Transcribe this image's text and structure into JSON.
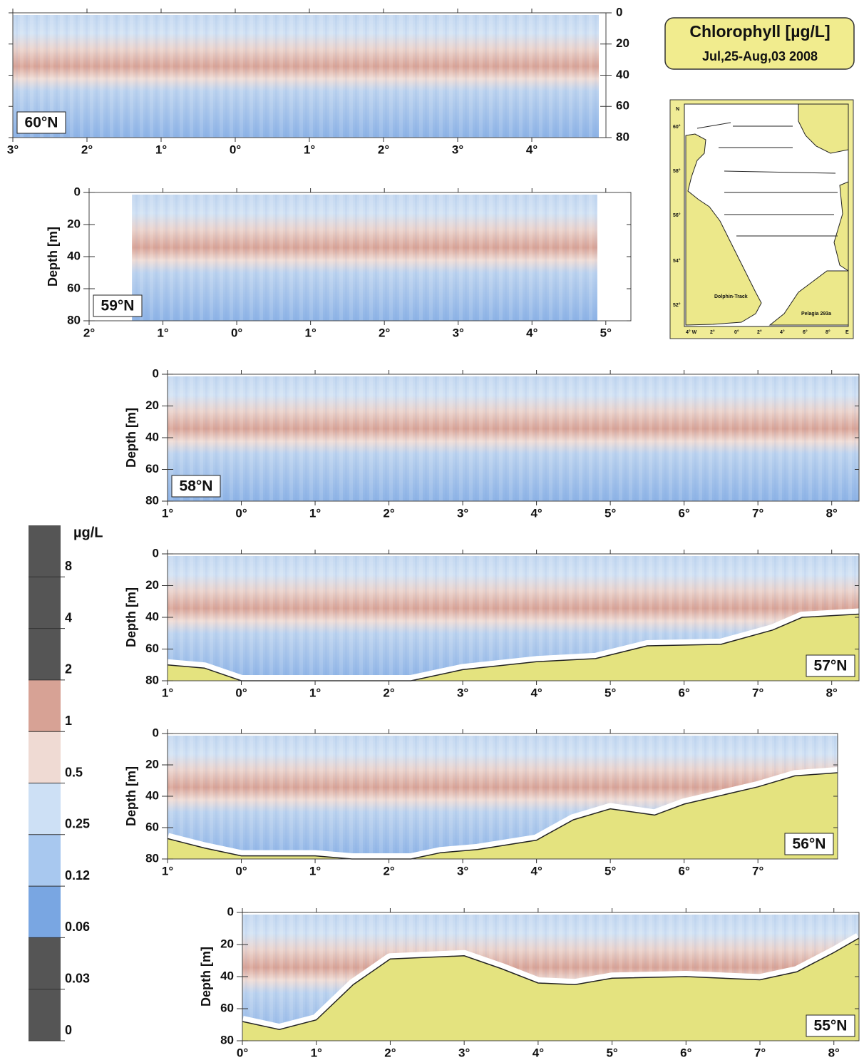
{
  "title": "Chlorophyll [µg/L]",
  "subtitle": "Jul,25-Aug,03 2008",
  "colorbar": {
    "title": "µg/L",
    "ticks": [
      8,
      4,
      2,
      1,
      0.5,
      0.25,
      0.12,
      0.06,
      0.03,
      0
    ],
    "colors": [
      "#555555",
      "#555555",
      "#555555",
      "#d7a295",
      "#efdad3",
      "#cde0f5",
      "#a8c8ef",
      "#79a6e2",
      "#555555",
      "#555555"
    ]
  },
  "map": {
    "north": "N",
    "lat_labels": [
      "60°",
      "58°",
      "56°",
      "54°",
      "52°"
    ],
    "lon_labels": [
      "4° W",
      "2°",
      "0°",
      "2°",
      "4°",
      "6°",
      "8°",
      "E"
    ],
    "track_left": "Dolphin-Track",
    "track_right": "Pelagia 293a"
  },
  "chart_data": [
    {
      "type": "section",
      "label": "60°N",
      "ylim": [
        0,
        80
      ],
      "yticks": [
        0,
        20,
        40,
        60,
        80
      ],
      "xlim": [
        -3,
        5
      ],
      "xticks": [
        {
          "value": -3,
          "label": "3°"
        },
        {
          "value": -2,
          "label": "2°"
        },
        {
          "value": -1,
          "label": "1°"
        },
        {
          "value": 0,
          "label": "0°"
        },
        {
          "value": 1,
          "label": "1°"
        },
        {
          "value": 2,
          "label": "2°"
        },
        {
          "value": 3,
          "label": "3°"
        },
        {
          "value": 4,
          "label": "4°"
        }
      ]
    },
    {
      "type": "section",
      "label": "59°N",
      "ylabel": "Depth [m]",
      "ylim": [
        0,
        80
      ],
      "yticks": [
        0,
        20,
        40,
        60,
        80
      ],
      "xlim": [
        -2,
        5.34
      ],
      "xticks": [
        {
          "value": -2,
          "label": "2°"
        },
        {
          "value": -1,
          "label": "1°"
        },
        {
          "value": 0,
          "label": "0°"
        },
        {
          "value": 1,
          "label": "1°"
        },
        {
          "value": 2,
          "label": "2°"
        },
        {
          "value": 3,
          "label": "3°"
        },
        {
          "value": 4,
          "label": "4°"
        },
        {
          "value": 5,
          "label": "5°"
        }
      ]
    },
    {
      "type": "section",
      "label": "58°N",
      "ylabel": "Depth [m]",
      "ylim": [
        0,
        80
      ],
      "yticks": [
        0,
        20,
        40,
        60,
        80
      ],
      "xlim": [
        -1,
        8.37
      ],
      "xticks": [
        {
          "value": -1,
          "label": "1°"
        },
        {
          "value": 0,
          "label": "0°"
        },
        {
          "value": 1,
          "label": "1°"
        },
        {
          "value": 2,
          "label": "2°"
        },
        {
          "value": 3,
          "label": "3°"
        },
        {
          "value": 4,
          "label": "4°"
        },
        {
          "value": 5,
          "label": "5°"
        },
        {
          "value": 6,
          "label": "6°"
        },
        {
          "value": 7,
          "label": "7°"
        },
        {
          "value": 8,
          "label": "8°"
        }
      ]
    },
    {
      "type": "section",
      "label": "57°N",
      "ylabel": "Depth [m]",
      "ylim": [
        0,
        80
      ],
      "yticks": [
        0,
        20,
        40,
        60,
        80
      ],
      "xlim": [
        -1,
        8.37
      ],
      "xticks": [
        {
          "value": -1,
          "label": "1°"
        },
        {
          "value": 0,
          "label": "0°"
        },
        {
          "value": 1,
          "label": "1°"
        },
        {
          "value": 2,
          "label": "2°"
        },
        {
          "value": 3,
          "label": "3°"
        },
        {
          "value": 4,
          "label": "4°"
        },
        {
          "value": 5,
          "label": "5°"
        },
        {
          "value": 6,
          "label": "6°"
        },
        {
          "value": 7,
          "label": "7°"
        },
        {
          "value": 8,
          "label": "8°"
        }
      ],
      "seafloor": {
        "color": "#e4e37f",
        "x": [
          -1,
          -0.5,
          0,
          0.5,
          1.5,
          2.3,
          3,
          4,
          4.8,
          5.5,
          6.5,
          7.2,
          7.6,
          8.37
        ],
        "values": [
          70,
          72,
          80,
          80,
          80,
          80,
          73,
          68,
          66,
          58,
          57,
          48,
          40,
          38
        ]
      }
    },
    {
      "type": "section",
      "label": "56°N",
      "ylabel": "Depth [m]",
      "ylim": [
        0,
        80
      ],
      "yticks": [
        0,
        20,
        40,
        60,
        80
      ],
      "xlim": [
        -1,
        8.08
      ],
      "xticks": [
        {
          "value": -1,
          "label": "1°"
        },
        {
          "value": 0,
          "label": "0°"
        },
        {
          "value": 1,
          "label": "1°"
        },
        {
          "value": 2,
          "label": "2°"
        },
        {
          "value": 3,
          "label": "3°"
        },
        {
          "value": 4,
          "label": "4°"
        },
        {
          "value": 5,
          "label": "5°"
        },
        {
          "value": 6,
          "label": "6°"
        },
        {
          "value": 7,
          "label": "7°"
        }
      ],
      "seafloor": {
        "color": "#e4e37f",
        "x": [
          -1,
          -0.5,
          0,
          1,
          1.5,
          2.3,
          2.7,
          3.2,
          4,
          4.5,
          5,
          5.6,
          6,
          7,
          7.5,
          8.08
        ],
        "values": [
          67,
          73,
          78,
          78,
          80,
          80,
          76,
          74,
          68,
          55,
          48,
          52,
          45,
          34,
          27,
          25
        ]
      }
    },
    {
      "type": "section",
      "label": "55°N",
      "ylabel": "Depth [m]",
      "ylim": [
        0,
        80
      ],
      "yticks": [
        0,
        20,
        40,
        60,
        80
      ],
      "xlim": [
        0,
        8.34
      ],
      "xticks": [
        {
          "value": 0,
          "label": "0°"
        },
        {
          "value": 1,
          "label": "1°"
        },
        {
          "value": 2,
          "label": "2°"
        },
        {
          "value": 3,
          "label": "3°"
        },
        {
          "value": 4,
          "label": "4°"
        },
        {
          "value": 5,
          "label": "5°"
        },
        {
          "value": 6,
          "label": "6°"
        },
        {
          "value": 7,
          "label": "7°"
        },
        {
          "value": 8,
          "label": "8°"
        }
      ],
      "seafloor": {
        "color": "#e4e37f",
        "x": [
          0,
          0.5,
          1,
          1.5,
          2,
          3,
          3.5,
          4,
          4.5,
          5,
          6,
          7,
          7.5,
          8,
          8.34
        ],
        "values": [
          68,
          73,
          67,
          45,
          29,
          27,
          35,
          44,
          45,
          41,
          40,
          42,
          37,
          25,
          16
        ]
      }
    }
  ]
}
